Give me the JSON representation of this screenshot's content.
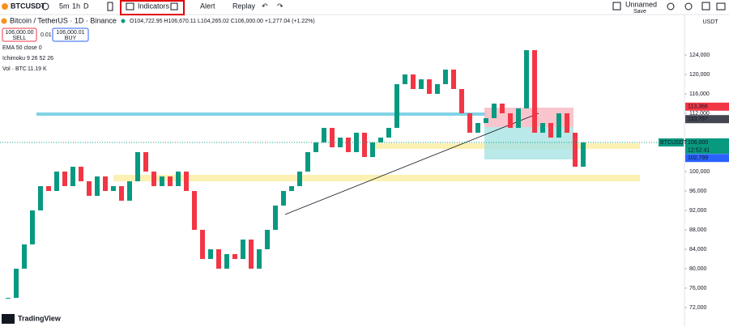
{
  "toolbar": {
    "symbol": "BTCUSDT",
    "intervals": [
      "5m",
      "1h",
      "D"
    ],
    "indicators": "Indicators",
    "alert": "Alert",
    "replay": "Replay",
    "layout_name": "Unnamed",
    "save": "Save"
  },
  "legend": {
    "title": "Bitcoin / TetherUS · 1D · Binance",
    "ohlc": "O104,722.95 H106,670.11 L104,265.02 C106,000.00 +1,277.04 (+1.22%)",
    "sell_price": "106,000.00",
    "sell": "SELL",
    "spread": "0.01",
    "buy_price": "106,000.01",
    "buy": "BUY",
    "ema": "EMA 50 close 0",
    "ichimoku": "Ichimoku 9 26 52 26",
    "volume_label": "Vol · BTC",
    "volume_value": "11.19 K"
  },
  "price_axis": {
    "currency": "USDT",
    "ylim": [
      68000,
      132000
    ],
    "ticks": [
      {
        "value": 124000,
        "label": "124,000"
      },
      {
        "value": 120000,
        "label": "120,000"
      },
      {
        "value": 116000,
        "label": "116,000"
      },
      {
        "value": 112000,
        "label": "112,000"
      },
      {
        "value": 100000,
        "label": "100,000"
      },
      {
        "value": 96000,
        "label": "96,000"
      },
      {
        "value": 92000,
        "label": "92,000"
      },
      {
        "value": 88000,
        "label": "88,000"
      },
      {
        "value": 84000,
        "label": "84,000"
      },
      {
        "value": 80000,
        "label": "80,000"
      },
      {
        "value": 76000,
        "label": "76,000"
      },
      {
        "value": 72000,
        "label": "72,000"
      }
    ],
    "price_labels": [
      {
        "value": 113368,
        "label": "113,368",
        "color": "#f23645"
      },
      {
        "value": 110797,
        "label": "110,797",
        "color": "#434651"
      },
      {
        "value": 106000,
        "label": "106,000",
        "color": "#089981"
      },
      {
        "value": 102799,
        "label": "102,799",
        "color": "#2962ff"
      }
    ],
    "symbol_tag": "BTCUSDT",
    "countdown": "12:52:41"
  },
  "chart": {
    "closes": [
      74000,
      80000,
      85000,
      92000,
      97000,
      96000,
      100000,
      97000,
      101000,
      98000,
      95000,
      99000,
      96000,
      97000,
      94000,
      98000,
      104000,
      100000,
      97000,
      99000,
      97000,
      100000,
      96000,
      88000,
      82000,
      84000,
      80000,
      83000,
      82000,
      86000,
      80000,
      84000,
      88000,
      93000,
      96000,
      97000,
      100000,
      104000,
      106000,
      109000,
      105000,
      107000,
      104000,
      108000,
      103000,
      106000,
      107000,
      109000,
      118000,
      120000,
      117000,
      119000,
      116000,
      118000,
      121000,
      117000,
      112000,
      108000,
      110000,
      111000,
      114000,
      112000,
      109000,
      113000,
      125000,
      108000,
      110000,
      107000,
      112000,
      108000,
      101000,
      106000
    ],
    "up_color": "#089981",
    "down_color": "#f23645"
  },
  "branding": {
    "logo": "TradingView"
  }
}
